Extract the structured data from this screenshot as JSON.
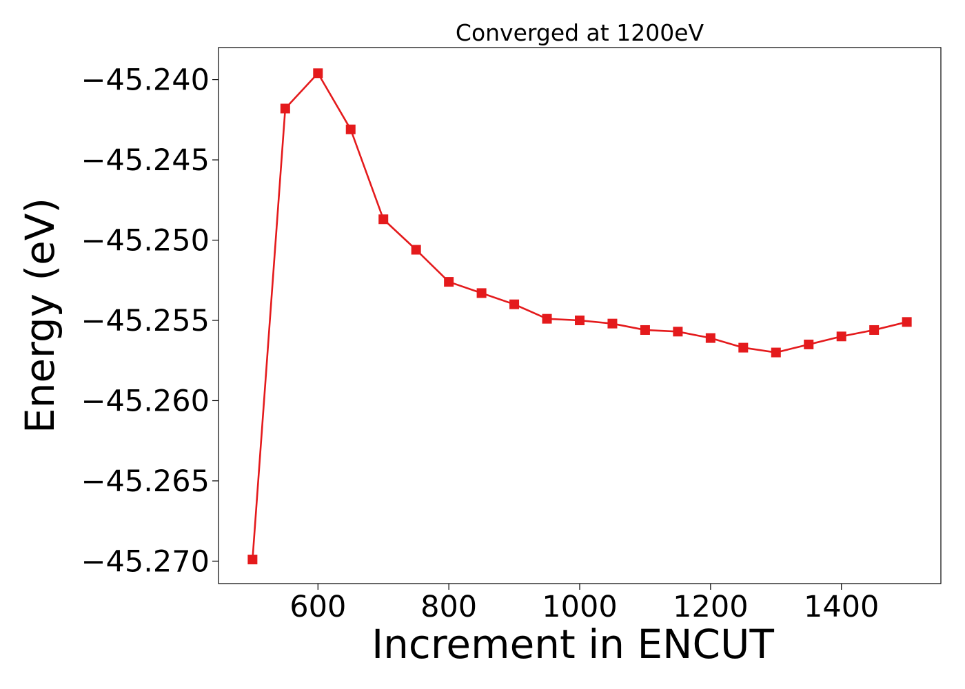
{
  "chart_data": {
    "type": "line",
    "title": "Converged at 1200eV",
    "xlabel": "Increment in ENCUT",
    "ylabel": "Energy (eV)",
    "xlim": [
      448,
      1552
    ],
    "ylim": [
      -45.2714,
      -45.238
    ],
    "xticks": [
      600,
      800,
      1000,
      1200,
      1400
    ],
    "xtick_labels": [
      "600",
      "800",
      "1000",
      "1200",
      "1400"
    ],
    "yticks": [
      -45.24,
      -45.245,
      -45.25,
      -45.255,
      -45.26,
      -45.265,
      -45.27
    ],
    "ytick_labels": [
      "−45.240",
      "−45.245",
      "−45.250",
      "−45.255",
      "−45.260",
      "−45.265",
      "−45.270"
    ],
    "grid": false,
    "series": [
      {
        "color": "#e41a1c",
        "marker": "square",
        "x": [
          500,
          550,
          600,
          650,
          700,
          750,
          800,
          850,
          900,
          950,
          1000,
          1050,
          1100,
          1150,
          1200,
          1250,
          1300,
          1350,
          1400,
          1450,
          1500
        ],
        "y": [
          -45.2699,
          -45.2418,
          -45.2396,
          -45.2431,
          -45.2487,
          -45.2506,
          -45.2526,
          -45.2533,
          -45.254,
          -45.2549,
          -45.255,
          -45.2552,
          -45.2556,
          -45.2557,
          -45.2561,
          -45.2567,
          -45.257,
          -45.2565,
          -45.256,
          -45.2556,
          -45.2551
        ]
      }
    ]
  }
}
